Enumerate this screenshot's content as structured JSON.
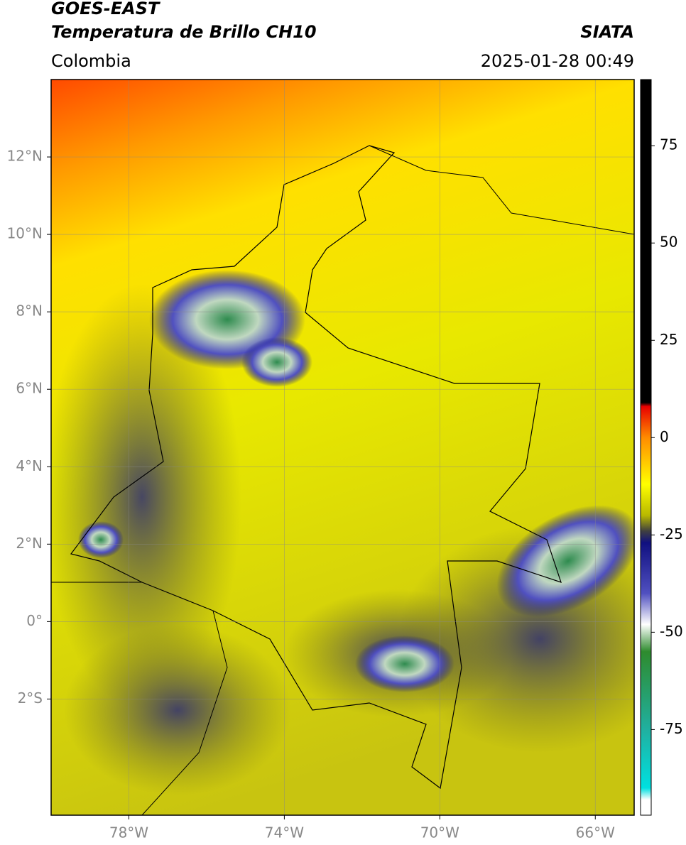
{
  "header": {
    "title": "GOES-EAST",
    "subtitle": "Temperatura de Brillo CH10",
    "source": "SIATA",
    "region": "Colombia",
    "datetime": "2025-01-28 00:49"
  },
  "map": {
    "xlim": [
      -80,
      -65
    ],
    "ylim": [
      -5,
      14
    ],
    "xticks": [
      {
        "value": -78,
        "label": "78°W"
      },
      {
        "value": -74,
        "label": "74°W"
      },
      {
        "value": -70,
        "label": "70°W"
      },
      {
        "value": -66,
        "label": "66°W"
      }
    ],
    "yticks": [
      {
        "value": 12,
        "label": "12°N"
      },
      {
        "value": 10,
        "label": "10°N"
      },
      {
        "value": 8,
        "label": "8°N"
      },
      {
        "value": 6,
        "label": "6°N"
      },
      {
        "value": 4,
        "label": "4°N"
      },
      {
        "value": 2,
        "label": "2°N"
      },
      {
        "value": 0,
        "label": "0°"
      },
      {
        "value": -2,
        "label": "2°S"
      }
    ],
    "grid": true
  },
  "colorbar": {
    "ylim": [
      -97,
      92
    ],
    "ticks": [
      75,
      50,
      25,
      0,
      -25,
      -50,
      -75
    ],
    "stops": [
      {
        "value": 92,
        "color": "#000000"
      },
      {
        "value": 9,
        "color": "#000000"
      },
      {
        "value": 8,
        "color": "#e80000"
      },
      {
        "value": 0,
        "color": "#ff8c00"
      },
      {
        "value": -12,
        "color": "#ffff00"
      },
      {
        "value": -20,
        "color": "#b8b800"
      },
      {
        "value": -24,
        "color": "#404040"
      },
      {
        "value": -27,
        "color": "#101080"
      },
      {
        "value": -40,
        "color": "#5050c0"
      },
      {
        "value": -48,
        "color": "#ffffff"
      },
      {
        "value": -55,
        "color": "#2e8b2e"
      },
      {
        "value": -75,
        "color": "#20b0a0"
      },
      {
        "value": -90,
        "color": "#00e0e0"
      },
      {
        "value": -93,
        "color": "#ffffff"
      },
      {
        "value": -97,
        "color": "#ffffff"
      }
    ]
  }
}
